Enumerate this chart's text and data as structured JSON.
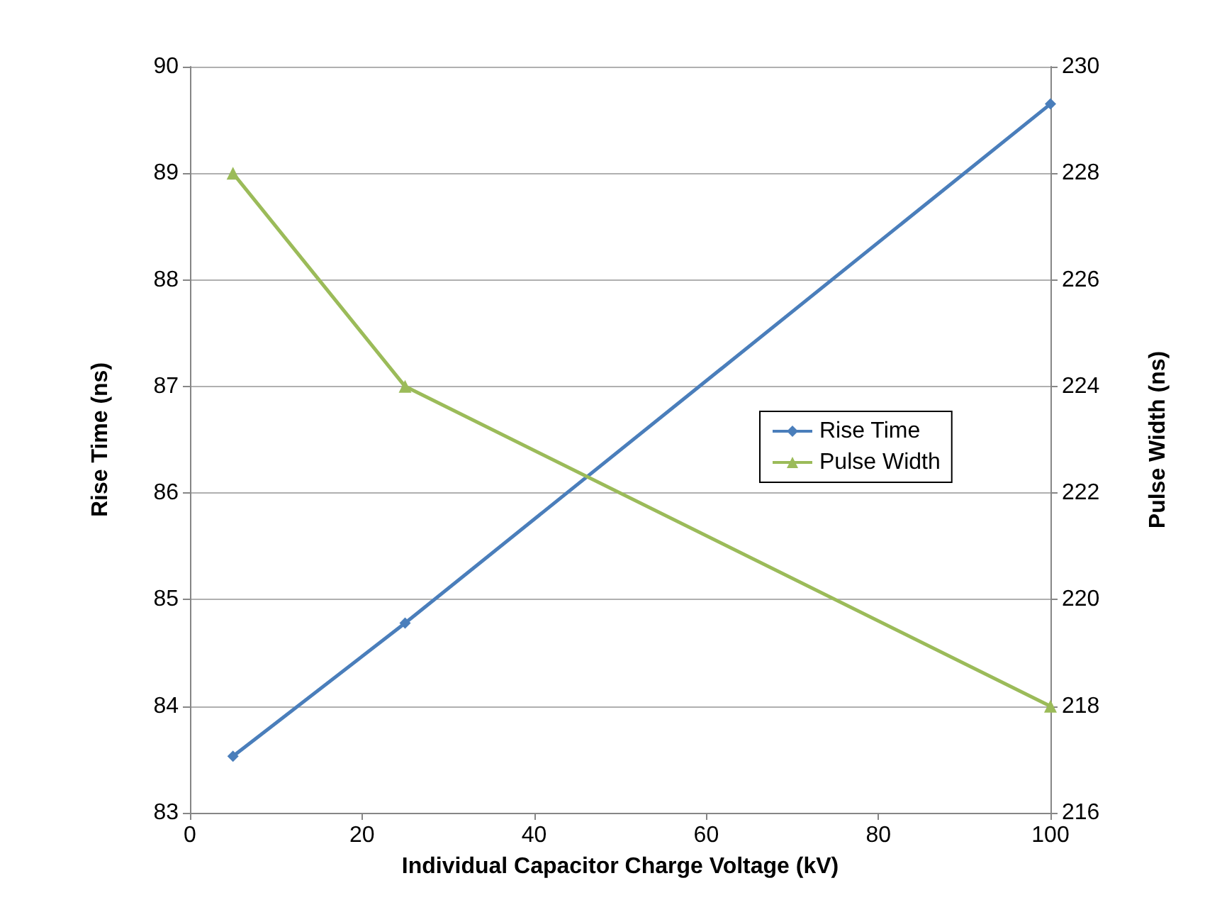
{
  "chart_data": {
    "type": "line",
    "xlabel": "Individual Capacitor Charge Voltage (kV)",
    "ylabel": "Rise Time (ns)",
    "y2label": "Pulse Width (ns)",
    "x": [
      5,
      25,
      100
    ],
    "series": [
      {
        "name": "Rise Time",
        "color": "#4a7ebb",
        "marker": "diamond",
        "values": [
          83.53,
          84.78,
          89.65
        ]
      },
      {
        "name": "Pulse Width",
        "color": "#9bbb59",
        "marker": "triangle",
        "axis": "y2",
        "values": [
          228,
          224,
          218
        ]
      }
    ],
    "xlim": [
      0,
      100
    ],
    "xticks": [
      0,
      20,
      40,
      60,
      80,
      100
    ],
    "ylim": [
      83,
      90
    ],
    "yticks": [
      83,
      84,
      85,
      86,
      87,
      88,
      89,
      90
    ],
    "y2lim": [
      216,
      230
    ],
    "y2ticks": [
      216,
      218,
      220,
      222,
      224,
      226,
      228,
      230
    ],
    "grid": "y",
    "legend": "right",
    "line_style": "solid"
  }
}
